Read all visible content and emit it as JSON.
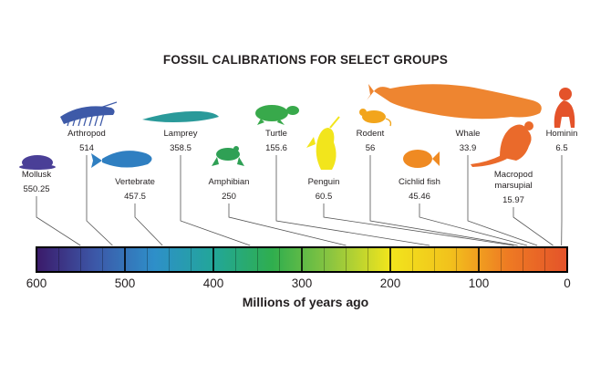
{
  "figure": {
    "title": "FOSSIL CALIBRATIONS FOR SELECT GROUPS",
    "xlabel": "Millions of years ago"
  },
  "axis": {
    "min": 0,
    "max": 600,
    "reversed": true,
    "tick_labels": [
      "600",
      "500",
      "400",
      "300",
      "200",
      "100",
      "0"
    ],
    "tick_values": [
      600,
      500,
      400,
      300,
      200,
      100,
      0
    ]
  },
  "gradient_colors": [
    "#3b1a6a",
    "#3c58a8",
    "#2e8fc9",
    "#22a699",
    "#2fae4e",
    "#8cc540",
    "#f2e51c",
    "#f2c21c",
    "#ee7a23",
    "#e4532a"
  ],
  "groups": [
    {
      "name": "Mollusk",
      "age": "550.25",
      "value": 550.25,
      "silhouette": "mollusk-icon",
      "color": "#4a3f97"
    },
    {
      "name": "Arthropod",
      "age": "514",
      "value": 514,
      "silhouette": "arthropod-icon",
      "color": "#3e5aa8"
    },
    {
      "name": "Vertebrate",
      "age": "457.5",
      "value": 457.5,
      "silhouette": "vertebrate-fish-icon",
      "color": "#2f7fc1"
    },
    {
      "name": "Lamprey",
      "age": "358.5",
      "value": 358.5,
      "silhouette": "lamprey-icon",
      "color": "#2a9a9a"
    },
    {
      "name": "Amphibian",
      "age": "250",
      "value": 250,
      "silhouette": "frog-icon",
      "color": "#2fa055"
    },
    {
      "name": "Turtle",
      "age": "155.6",
      "value": 155.6,
      "silhouette": "turtle-icon",
      "color": "#38a94b"
    },
    {
      "name": "Penguin",
      "age": "60.5",
      "value": 60.5,
      "silhouette": "penguin-icon",
      "color": "#f2e51c"
    },
    {
      "name": "Rodent",
      "age": "56",
      "value": 56,
      "silhouette": "rodent-icon",
      "color": "#f2a51c"
    },
    {
      "name": "Cichlid fish",
      "age": "45.46",
      "value": 45.46,
      "silhouette": "cichlid-fish-icon",
      "color": "#ef8a22"
    },
    {
      "name": "Whale",
      "age": "33.9",
      "value": 33.9,
      "silhouette": "whale-icon",
      "color": "#ee8530"
    },
    {
      "name": "Macropod\nmarsupial",
      "age": "15.97",
      "value": 15.97,
      "silhouette": "kangaroo-icon",
      "color": "#ea6a2b"
    },
    {
      "name": "Hominin",
      "age": "6.5",
      "value": 6.5,
      "silhouette": "hominin-icon",
      "color": "#e4532a"
    }
  ]
}
